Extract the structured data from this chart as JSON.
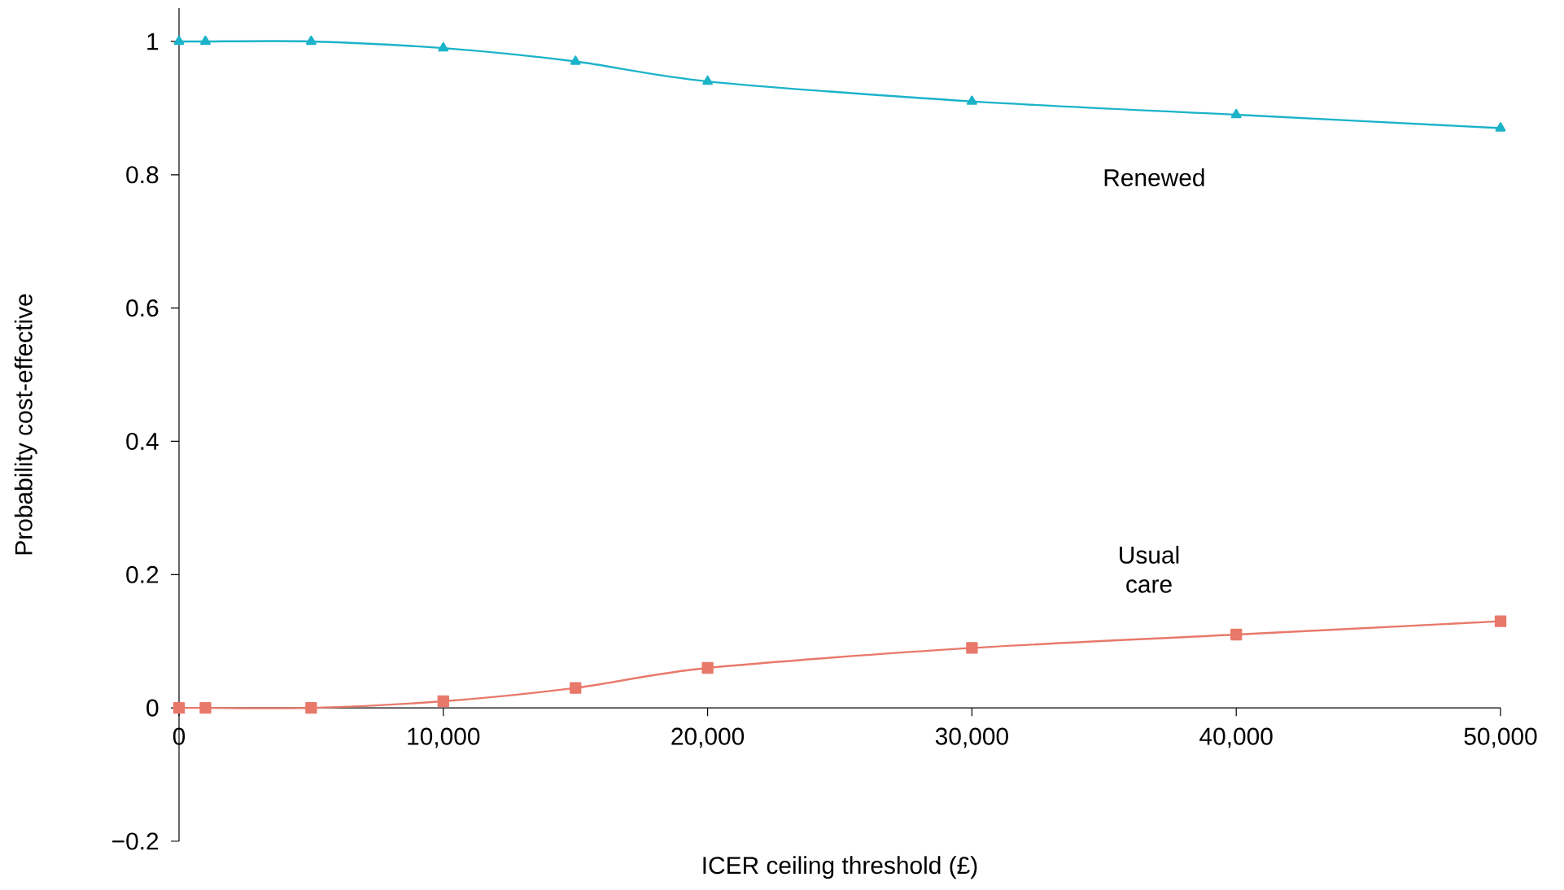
{
  "chart_data": {
    "type": "line",
    "xlabel": "ICER ceiling threshold (£)",
    "ylabel": "Probability cost-effective",
    "x": [
      0,
      1000,
      5000,
      10000,
      15000,
      20000,
      30000,
      40000,
      50000
    ],
    "series": [
      {
        "name": "Renewed",
        "color": "#1bb3c9",
        "marker": "triangle",
        "values": [
          1,
          1,
          1,
          0.99,
          0.97,
          0.94,
          0.91,
          0.89,
          0.87
        ]
      },
      {
        "name": "Usual care",
        "color": "#e8796a",
        "marker": "square",
        "values": [
          0,
          0,
          0,
          0.01,
          0.03,
          0.06,
          0.09,
          0.11,
          0.13
        ]
      }
    ],
    "xlim": [
      0,
      50000
    ],
    "ylim": [
      -0.2,
      1.05
    ],
    "xticks": [
      0,
      {
        "value": 10000,
        "label": "10,000"
      },
      {
        "value": 20000,
        "label": "20,000"
      },
      {
        "value": 30000,
        "label": "30,000"
      },
      {
        "value": 40000,
        "label": "40,000"
      },
      {
        "value": 50000,
        "label": "50,000"
      }
    ],
    "yticks": [
      {
        "value": -0.2,
        "label": "−0.2"
      },
      0,
      0.2,
      0.4,
      0.6,
      0.8,
      1
    ],
    "grid": false,
    "line_style": "solid"
  }
}
